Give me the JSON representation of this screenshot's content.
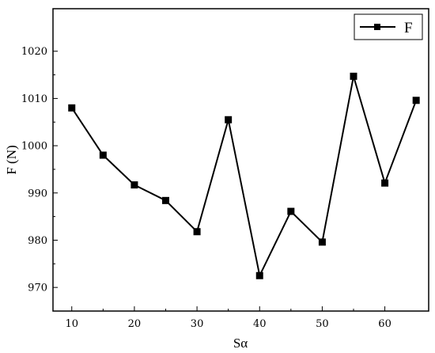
{
  "chart_data": {
    "type": "line",
    "xlabel": "Sα",
    "ylabel": "F (N)",
    "xlim": [
      7,
      67
    ],
    "ylim": [
      965,
      1029
    ],
    "xticks": [
      10,
      20,
      30,
      40,
      50,
      60
    ],
    "yticks": [
      970,
      980,
      990,
      1000,
      1010,
      1020
    ],
    "grid": false,
    "legend_position": "top-right",
    "series": [
      {
        "name": "F",
        "color": "#000000",
        "marker": "square",
        "x": [
          10,
          15,
          20,
          25,
          30,
          35,
          40,
          45,
          50,
          55,
          60,
          65
        ],
        "y": [
          1008.0,
          998.0,
          991.7,
          988.4,
          981.8,
          1005.5,
          972.5,
          986.1,
          979.6,
          1014.7,
          992.1,
          1009.6
        ]
      }
    ]
  }
}
